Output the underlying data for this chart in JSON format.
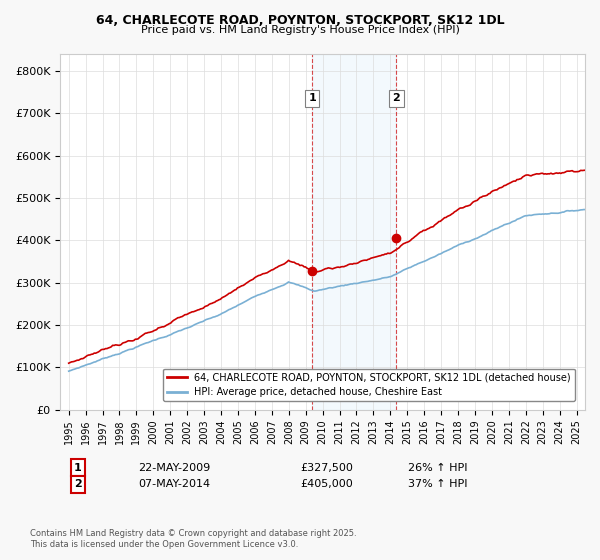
{
  "title_line1": "64, CHARLECOTE ROAD, POYNTON, STOCKPORT, SK12 1DL",
  "title_line2": "Price paid vs. HM Land Registry's House Price Index (HPI)",
  "ylabel": "£",
  "yticks": [
    0,
    100000,
    200000,
    300000,
    400000,
    500000,
    600000,
    700000,
    800000
  ],
  "ytick_labels": [
    "£0",
    "£100K",
    "£200K",
    "£300K",
    "£400K",
    "£500K",
    "£600K",
    "£700K",
    "£800K"
  ],
  "ylim": [
    0,
    840000
  ],
  "xlim_start": 1994.5,
  "xlim_end": 2025.5,
  "xticks": [
    1995,
    1996,
    1997,
    1998,
    1999,
    2000,
    2001,
    2002,
    2003,
    2004,
    2005,
    2006,
    2007,
    2008,
    2009,
    2010,
    2011,
    2012,
    2013,
    2014,
    2015,
    2016,
    2017,
    2018,
    2019,
    2020,
    2021,
    2022,
    2023,
    2024,
    2025
  ],
  "sale1_x": 2009.39,
  "sale1_y": 327500,
  "sale1_label": "1",
  "sale1_date": "22-MAY-2009",
  "sale1_price": "£327,500",
  "sale1_hpi": "26% ↑ HPI",
  "sale2_x": 2014.36,
  "sale2_y": 405000,
  "sale2_label": "2",
  "sale2_date": "07-MAY-2014",
  "sale2_price": "£405,000",
  "sale2_hpi": "37% ↑ HPI",
  "line_color_property": "#cc0000",
  "line_color_hpi": "#7ab0d4",
  "shading_color": "#d0e8f8",
  "vline_color": "#cc0000",
  "legend_label_property": "64, CHARLECOTE ROAD, POYNTON, STOCKPORT, SK12 1DL (detached house)",
  "legend_label_hpi": "HPI: Average price, detached house, Cheshire East",
  "footnote": "Contains HM Land Registry data © Crown copyright and database right 2025.\nThis data is licensed under the Open Government Licence v3.0.",
  "background_color": "#f8f8f8",
  "plot_background": "#ffffff"
}
